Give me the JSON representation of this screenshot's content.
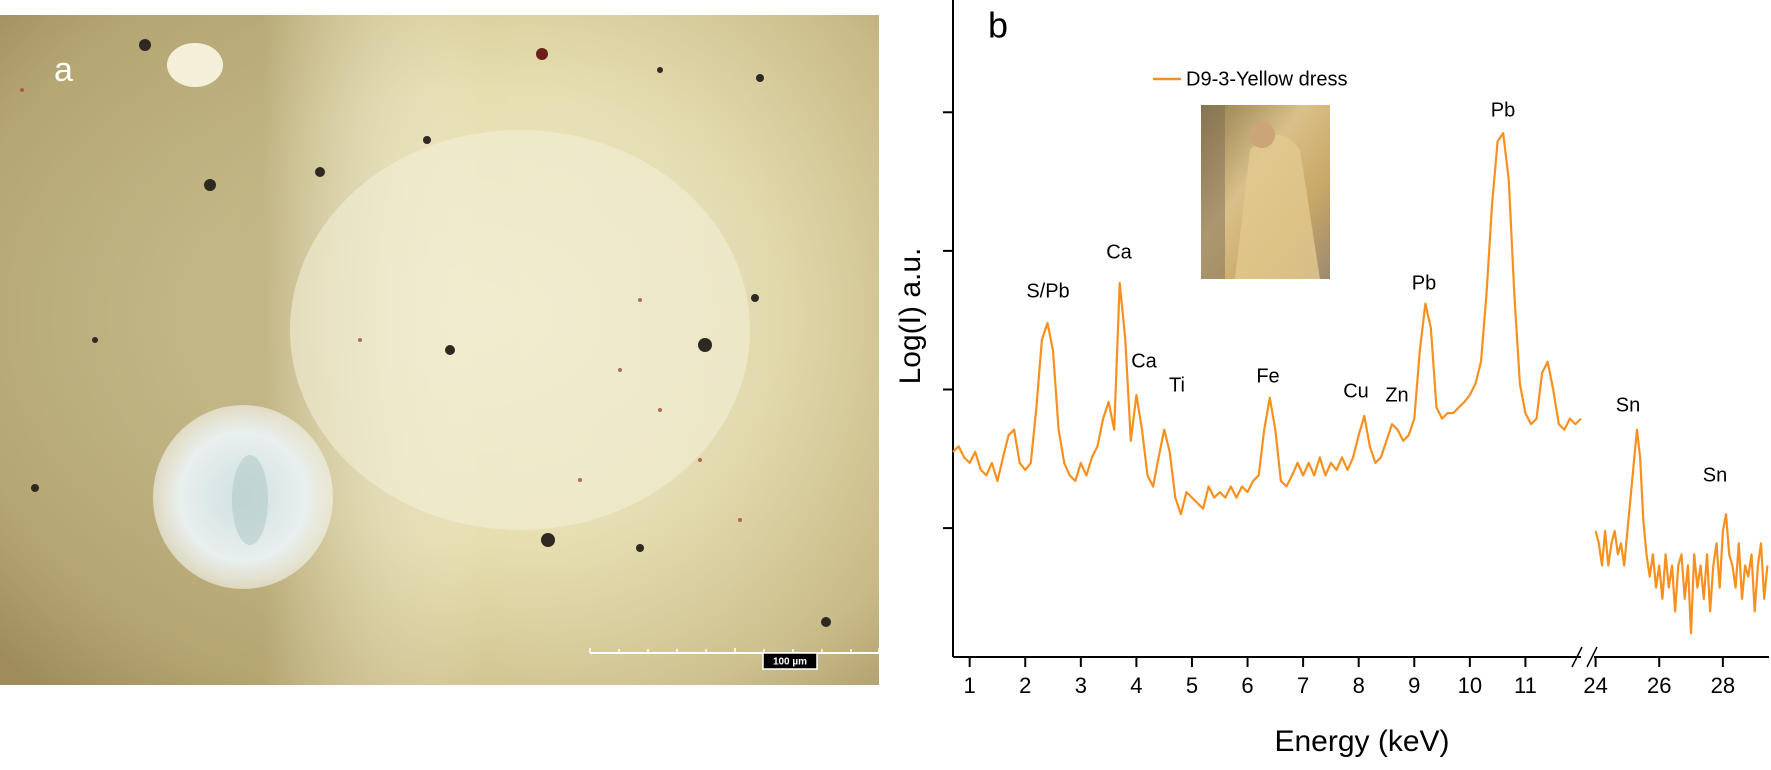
{
  "panel_a": {
    "label": "a",
    "scale_bar": "100 µm"
  },
  "chart_data": {
    "type": "line",
    "panel_label": "b",
    "xlabel": "Energy (keV)",
    "ylabel": "Log(I) a.u.",
    "annotations": [
      "S/Pb",
      "Ca",
      "Ca",
      "Ti",
      "Fe",
      "Cu",
      "Zn",
      "Pb",
      "Pb",
      "Sn",
      "Sn"
    ],
    "x_segments": [
      {
        "xlim": [
          0.7,
          12.0
        ],
        "xticks": [
          1,
          2,
          3,
          4,
          5,
          6,
          7,
          8,
          9,
          10,
          11
        ]
      },
      {
        "xlim": [
          23.95,
          29.45
        ],
        "xticks": [
          24,
          26,
          28
        ]
      }
    ],
    "ylim": [
      0.07,
      4.81
    ],
    "yticks": [
      1,
      2,
      3,
      4
    ],
    "legend": "top-center",
    "x": [
      0.7,
      0.8,
      0.9,
      1.0,
      1.1,
      1.2,
      1.3,
      1.4,
      1.5,
      1.6,
      1.7,
      1.8,
      1.9,
      2.0,
      2.1,
      2.2,
      2.3,
      2.4,
      2.5,
      2.6,
      2.7,
      2.8,
      2.9,
      3.0,
      3.1,
      3.2,
      3.3,
      3.4,
      3.5,
      3.6,
      3.7,
      3.8,
      3.9,
      4.0,
      4.1,
      4.2,
      4.3,
      4.4,
      4.5,
      4.6,
      4.7,
      4.8,
      4.9,
      5.0,
      5.1,
      5.2,
      5.3,
      5.4,
      5.5,
      5.6,
      5.7,
      5.8,
      5.9,
      6.0,
      6.1,
      6.2,
      6.3,
      6.4,
      6.5,
      6.6,
      6.7,
      6.8,
      6.9,
      7.0,
      7.1,
      7.2,
      7.3,
      7.4,
      7.5,
      7.6,
      7.7,
      7.8,
      7.9,
      8.0,
      8.1,
      8.2,
      8.3,
      8.4,
      8.5,
      8.6,
      8.7,
      8.8,
      8.9,
      9.0,
      9.1,
      9.2,
      9.3,
      9.4,
      9.5,
      9.6,
      9.7,
      9.8,
      9.9,
      10.0,
      10.1,
      10.2,
      10.3,
      10.4,
      10.5,
      10.6,
      10.7,
      10.8,
      10.9,
      11.0,
      11.1,
      11.2,
      11.3,
      11.4,
      11.5,
      11.6,
      11.7,
      11.8,
      11.9,
      12.0,
      24.0,
      24.1,
      24.2,
      24.3,
      24.4,
      24.5,
      24.6,
      24.7,
      24.8,
      24.9,
      25.0,
      25.1,
      25.2,
      25.3,
      25.4,
      25.5,
      25.6,
      25.7,
      25.8,
      25.9,
      26.0,
      26.1,
      26.2,
      26.3,
      26.4,
      26.5,
      26.6,
      26.7,
      26.8,
      26.9,
      27.0,
      27.1,
      27.2,
      27.3,
      27.4,
      27.5,
      27.6,
      27.7,
      27.8,
      27.9,
      28.0,
      28.1,
      28.2,
      28.3,
      28.4,
      28.5,
      28.6,
      28.7,
      28.8,
      28.9,
      29.0,
      29.1,
      29.2,
      29.3,
      29.4
    ],
    "series": [
      {
        "name": "D9-3-Yellow dress",
        "color": "#f7901e",
        "values": [
          1.55,
          1.59,
          1.51,
          1.47,
          1.55,
          1.42,
          1.38,
          1.47,
          1.34,
          1.51,
          1.67,
          1.71,
          1.47,
          1.42,
          1.47,
          1.87,
          2.36,
          2.48,
          2.28,
          1.71,
          1.47,
          1.38,
          1.34,
          1.47,
          1.38,
          1.51,
          1.59,
          1.79,
          1.91,
          1.71,
          2.77,
          2.36,
          1.63,
          1.96,
          1.71,
          1.38,
          1.3,
          1.51,
          1.71,
          1.55,
          1.22,
          1.1,
          1.26,
          1.22,
          1.18,
          1.14,
          1.3,
          1.22,
          1.26,
          1.22,
          1.3,
          1.22,
          1.3,
          1.26,
          1.34,
          1.38,
          1.71,
          1.94,
          1.71,
          1.34,
          1.3,
          1.38,
          1.47,
          1.38,
          1.47,
          1.38,
          1.51,
          1.38,
          1.47,
          1.42,
          1.51,
          1.42,
          1.51,
          1.67,
          1.81,
          1.59,
          1.47,
          1.51,
          1.63,
          1.75,
          1.71,
          1.63,
          1.67,
          1.79,
          2.28,
          2.62,
          2.44,
          1.87,
          1.79,
          1.83,
          1.83,
          1.87,
          1.91,
          1.96,
          2.04,
          2.2,
          2.69,
          3.34,
          3.79,
          3.85,
          3.51,
          2.69,
          2.04,
          1.83,
          1.75,
          1.79,
          2.12,
          2.2,
          2.0,
          1.75,
          1.71,
          1.79,
          1.75,
          1.79,
          0.98,
          0.89,
          0.73,
          0.98,
          0.73,
          0.89,
          0.98,
          0.81,
          0.89,
          0.73,
          0.98,
          1.22,
          1.47,
          1.71,
          1.51,
          1.06,
          0.81,
          0.65,
          0.81,
          0.57,
          0.73,
          0.49,
          0.81,
          0.57,
          0.73,
          0.4,
          0.73,
          0.81,
          0.49,
          0.73,
          0.24,
          0.81,
          0.57,
          0.73,
          0.49,
          0.81,
          0.4,
          0.73,
          0.89,
          0.57,
          0.98,
          1.1,
          0.81,
          0.73,
          0.57,
          0.89,
          0.49,
          0.73,
          0.65,
          0.81,
          0.4,
          0.73,
          0.89,
          0.49,
          0.73
        ]
      }
    ]
  }
}
